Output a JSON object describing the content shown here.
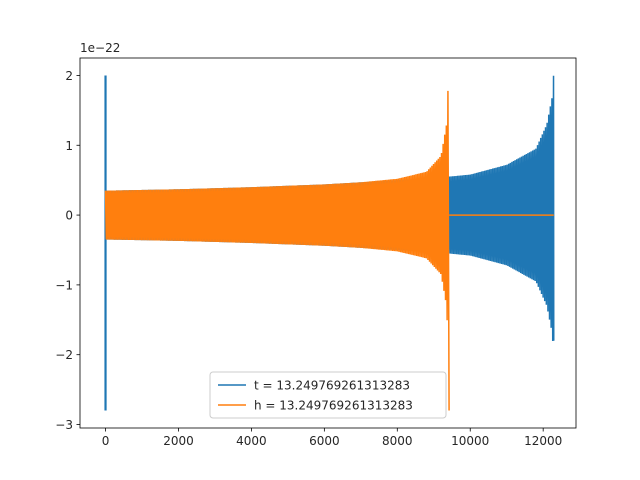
{
  "chart_data": {
    "type": "line",
    "title": "",
    "xlabel": "",
    "ylabel": "",
    "y_offset_label": "1e−22",
    "xlim": [
      -700,
      12900
    ],
    "ylim": [
      -3.05,
      2.25
    ],
    "x_ticks": [
      0,
      2000,
      4000,
      6000,
      8000,
      10000,
      12000
    ],
    "x_tick_labels": [
      "0",
      "2000",
      "4000",
      "6000",
      "8000",
      "10000",
      "12000"
    ],
    "y_ticks": [
      -3,
      -2,
      -1,
      0,
      1,
      2
    ],
    "y_tick_labels": [
      "−3",
      "−2",
      "−1",
      "0",
      "1",
      "2"
    ],
    "grid": false,
    "legend_position": "lower-center",
    "series": [
      {
        "name": "t = 13.249769261313283",
        "color": "#1f77b4",
        "description_points": {
          "spike_at_x": 0,
          "spike_min": -2.8,
          "spike_max": 2.0,
          "envelope": [
            [
              0,
              0.35
            ],
            [
              2000,
              0.37
            ],
            [
              4000,
              0.4
            ],
            [
              6000,
              0.44
            ],
            [
              8000,
              0.5
            ],
            [
              9400,
              0.55
            ],
            [
              10000,
              0.58
            ],
            [
              11000,
              0.72
            ],
            [
              11800,
              0.95
            ],
            [
              12100,
              1.3
            ],
            [
              12250,
              1.7
            ],
            [
              12290,
              2.05
            ]
          ],
          "end_min": -1.8,
          "end_x": 12290
        }
      },
      {
        "name": "h = 13.249769261313283",
        "color": "#ff7f0e",
        "description_points": {
          "envelope": [
            [
              0,
              0.35
            ],
            [
              2000,
              0.37
            ],
            [
              4000,
              0.4
            ],
            [
              6000,
              0.44
            ],
            [
              7000,
              0.47
            ],
            [
              8000,
              0.52
            ],
            [
              8800,
              0.62
            ],
            [
              9200,
              0.85
            ],
            [
              9350,
              1.3
            ],
            [
              9410,
              2.05
            ]
          ],
          "end_min": -2.8,
          "end_x": 9420,
          "flat_after": [
            9420,
            12290
          ],
          "flat_value": 0
        }
      }
    ]
  }
}
